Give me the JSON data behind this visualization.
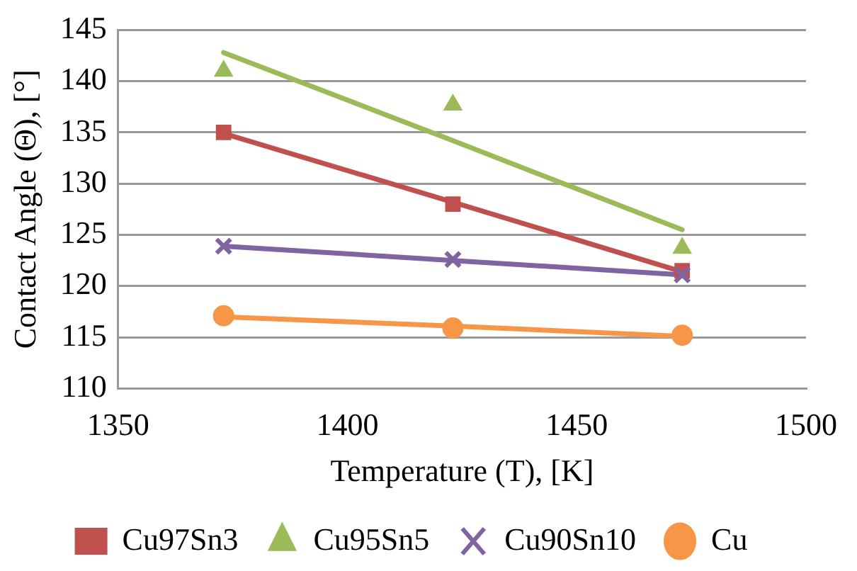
{
  "chart_data": {
    "type": "scatter",
    "xlabel": "Temperature (T), [K]",
    "ylabel": "Contact Angle (Θ), [°]",
    "x": [
      1373,
      1423,
      1473
    ],
    "xlim": [
      1350,
      1500
    ],
    "xticks": [
      1350,
      1400,
      1450,
      1500
    ],
    "ylim": [
      110,
      145
    ],
    "yticks": [
      110,
      115,
      120,
      125,
      130,
      135,
      140,
      145
    ],
    "grid": "y",
    "legend": "bottom",
    "series": [
      {
        "name": "Cu97Sn3",
        "color": "#c0504d",
        "marker": "square",
        "values": [
          135,
          128,
          121.5
        ]
      },
      {
        "name": "Cu95Sn5",
        "color": "#9bbb59",
        "marker": "triangle",
        "values": [
          141,
          137.7,
          123.7
        ]
      },
      {
        "name": "Cu90Sn10",
        "color": "#8064a2",
        "marker": "cross",
        "values": [
          123.9,
          122.6,
          121.1
        ]
      },
      {
        "name": "Cu",
        "color": "#f79646",
        "marker": "circle",
        "values": [
          117.1,
          115.9,
          115.2
        ]
      },
      {
        "type": "line",
        "color": "#c0504d",
        "marker": "none",
        "values": [
          134.9,
          128.2,
          121.4
        ]
      },
      {
        "type": "line",
        "color": "#9bbb59",
        "marker": "none",
        "values": [
          142.8,
          134.2,
          125.5
        ]
      },
      {
        "type": "line",
        "color": "#8064a2",
        "marker": "none",
        "values": [
          123.9,
          122.5,
          121.1
        ]
      },
      {
        "type": "line",
        "color": "#f79646",
        "marker": "none",
        "values": [
          117,
          116.1,
          115.1
        ]
      }
    ]
  }
}
